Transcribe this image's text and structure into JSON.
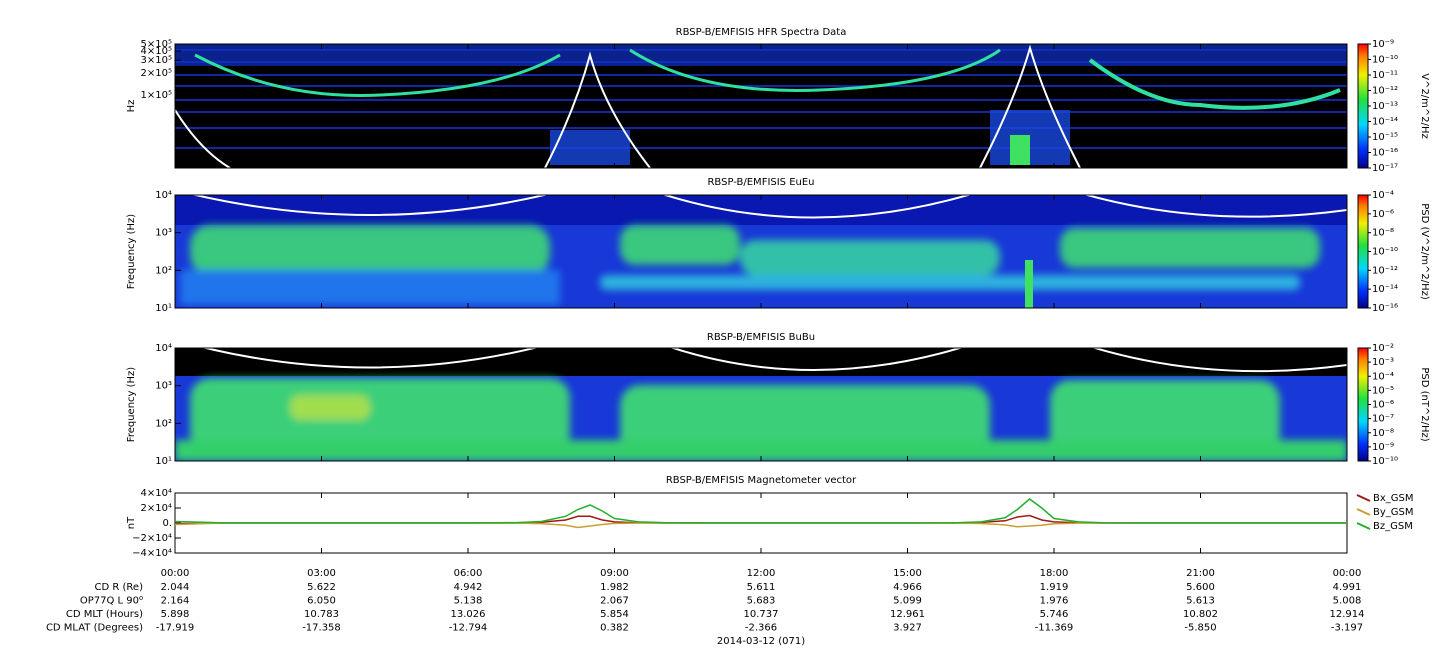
{
  "chart_data": [
    {
      "type": "spectrogram",
      "title": "RBSP-B/EMFISIS  HFR Spectra Data",
      "ylabel": "Hz",
      "log": true,
      "ylim": [
        10000,
        500000
      ],
      "yticks": [
        {
          "value": 100000,
          "label": "1×10⁵"
        },
        {
          "value": 200000,
          "label": "2×10⁵"
        },
        {
          "value": 300000,
          "label": "3×10⁵"
        },
        {
          "value": 400000,
          "label": "4×10⁵"
        },
        {
          "value": 500000,
          "label": "5×10⁵"
        }
      ],
      "zlabel": "V^2/m^2/Hz",
      "zlog": true,
      "zlim": [
        1e-17,
        1e-09
      ],
      "zticks": [
        {
          "value": 1e-17,
          "label": "10⁻¹⁷"
        },
        {
          "value": 1e-16,
          "label": "10⁻¹⁶"
        },
        {
          "value": 1e-15,
          "label": "10⁻¹⁵"
        },
        {
          "value": 1e-14,
          "label": "10⁻¹⁴"
        },
        {
          "value": 1e-13,
          "label": "10⁻¹³"
        },
        {
          "value": 1e-12,
          "label": "10⁻¹²"
        },
        {
          "value": 1e-11,
          "label": "10⁻¹¹"
        },
        {
          "value": 1e-10,
          "label": "10⁻¹⁰"
        },
        {
          "value": 1e-09,
          "label": "10⁻⁹"
        }
      ]
    },
    {
      "type": "spectrogram",
      "title": "RBSP-B/EMFISIS  EuEu",
      "ylabel": "Frequency (Hz)",
      "log": true,
      "ylim": [
        10,
        10000
      ],
      "yticks": [
        {
          "value": 10,
          "label": "10¹"
        },
        {
          "value": 100,
          "label": "10²"
        },
        {
          "value": 1000,
          "label": "10³"
        },
        {
          "value": 10000,
          "label": "10⁴"
        }
      ],
      "zlabel": "PSD (V^2/m^2/Hz)",
      "zlog": true,
      "zlim": [
        1e-16,
        0.0001
      ],
      "zticks": [
        {
          "value": 1e-16,
          "label": "10⁻¹⁶"
        },
        {
          "value": 1e-14,
          "label": "10⁻¹⁴"
        },
        {
          "value": 1e-12,
          "label": "10⁻¹²"
        },
        {
          "value": 1e-10,
          "label": "10⁻¹⁰"
        },
        {
          "value": 1e-08,
          "label": "10⁻⁸"
        },
        {
          "value": 1e-06,
          "label": "10⁻⁶"
        },
        {
          "value": 0.0001,
          "label": "10⁻⁴"
        }
      ]
    },
    {
      "type": "spectrogram",
      "title": "RBSP-B/EMFISIS  BuBu",
      "ylabel": "Frequency (Hz)",
      "log": true,
      "ylim": [
        10,
        10000
      ],
      "yticks": [
        {
          "value": 10,
          "label": "10¹"
        },
        {
          "value": 100,
          "label": "10²"
        },
        {
          "value": 1000,
          "label": "10³"
        },
        {
          "value": 10000,
          "label": "10⁴"
        }
      ],
      "zlabel": "PSD (nT^2/Hz)",
      "zlog": true,
      "zlim": [
        1e-10,
        0.01
      ],
      "zticks": [
        {
          "value": 1e-10,
          "label": "10⁻¹⁰"
        },
        {
          "value": 1e-09,
          "label": "10⁻⁹"
        },
        {
          "value": 1e-08,
          "label": "10⁻⁸"
        },
        {
          "value": 1e-07,
          "label": "10⁻⁷"
        },
        {
          "value": 1e-06,
          "label": "10⁻⁶"
        },
        {
          "value": 1e-05,
          "label": "10⁻⁵"
        },
        {
          "value": 0.0001,
          "label": "10⁻⁴"
        },
        {
          "value": 0.001,
          "label": "10⁻³"
        },
        {
          "value": 0.01,
          "label": "10⁻²"
        }
      ]
    },
    {
      "type": "line",
      "title": "RBSP-B/EMFISIS  Magnetometer vector",
      "ylabel": "nT",
      "xlim": [
        0,
        24
      ],
      "xticks": [
        {
          "value": 0,
          "label": "00:00"
        },
        {
          "value": 3,
          "label": "03:00"
        },
        {
          "value": 6,
          "label": "06:00"
        },
        {
          "value": 9,
          "label": "09:00"
        },
        {
          "value": 12,
          "label": "12:00"
        },
        {
          "value": 15,
          "label": "15:00"
        },
        {
          "value": 18,
          "label": "18:00"
        },
        {
          "value": 21,
          "label": "21:00"
        },
        {
          "value": 24,
          "label": "00:00"
        }
      ],
      "ylim": [
        -40000,
        40000
      ],
      "yticks": [
        {
          "value": -40000,
          "label": "−4×10⁴"
        },
        {
          "value": -20000,
          "label": "−2×10⁴"
        },
        {
          "value": 0,
          "label": "0."
        },
        {
          "value": 20000,
          "label": "2×10⁴"
        },
        {
          "value": 40000,
          "label": "4×10⁴"
        }
      ],
      "x": [
        0,
        1,
        2,
        3,
        4,
        5,
        6,
        7,
        7.5,
        8,
        8.25,
        8.5,
        8.75,
        9,
        9.5,
        10,
        11,
        12,
        13,
        14,
        15,
        16,
        16.5,
        17,
        17.25,
        17.5,
        17.75,
        18,
        18.5,
        19,
        20,
        21,
        22,
        23,
        24
      ],
      "series": [
        {
          "name": "Bx_GSM",
          "color": "#a01818",
          "values": [
            -1000,
            0,
            0,
            0,
            0,
            0,
            0,
            200,
            1000,
            4000,
            9000,
            9000,
            4000,
            1500,
            300,
            0,
            0,
            0,
            0,
            0,
            0,
            100,
            800,
            3000,
            8000,
            10000,
            4000,
            1500,
            300,
            0,
            0,
            0,
            0,
            0,
            0
          ]
        },
        {
          "name": "By_GSM",
          "color": "#c8a030",
          "values": [
            -2000,
            0,
            0,
            0,
            0,
            0,
            0,
            -200,
            -800,
            -3000,
            -6000,
            -4000,
            -2000,
            -500,
            -200,
            0,
            0,
            0,
            0,
            0,
            0,
            -100,
            -600,
            -2500,
            -5000,
            -4000,
            -3000,
            -1000,
            -200,
            0,
            0,
            0,
            0,
            0,
            0
          ]
        },
        {
          "name": "Bz_GSM",
          "color": "#22b030",
          "values": [
            2000,
            200,
            100,
            100,
            100,
            100,
            200,
            500,
            2000,
            9000,
            18000,
            24000,
            16000,
            6000,
            1500,
            500,
            200,
            100,
            100,
            100,
            100,
            300,
            1500,
            7000,
            18000,
            32000,
            20000,
            6000,
            1500,
            400,
            200,
            100,
            100,
            100,
            100
          ]
        }
      ]
    }
  ],
  "ephemeris": {
    "date": "2014-03-12 (071)",
    "rows": [
      {
        "label": "CD R (Re)",
        "values": [
          "2.044",
          "5.622",
          "4.942",
          "1.982",
          "5.611",
          "4.966",
          "1.919",
          "5.600",
          "4.991"
        ]
      },
      {
        "label": "OP77Q L 90⁰",
        "values": [
          "2.164",
          "6.050",
          "5.138",
          "2.067",
          "5.683",
          "5.099",
          "1.976",
          "5.613",
          "5.008"
        ]
      },
      {
        "label": "CD MLT (Hours)",
        "values": [
          "5.898",
          "10.783",
          "13.026",
          "5.854",
          "10.737",
          "12.961",
          "5.746",
          "10.802",
          "12.914"
        ]
      },
      {
        "label": "CD MLAT (Degrees)",
        "values": [
          "-17.919",
          "-17.358",
          "-12.794",
          "0.382",
          "-2.366",
          "3.927",
          "-11.369",
          "-5.850",
          "-3.197"
        ]
      }
    ]
  }
}
